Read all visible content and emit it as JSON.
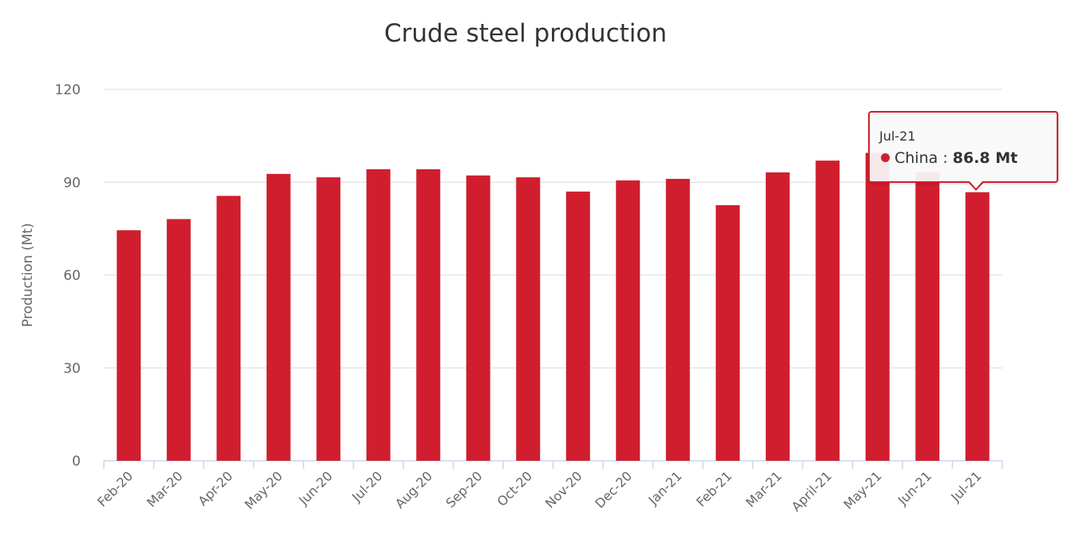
{
  "chart_data": {
    "type": "bar",
    "title": "Crude steel production",
    "xlabel": "",
    "ylabel": "Production (Mt)",
    "ylim": [
      0,
      120
    ],
    "yticks": [
      0,
      30,
      60,
      90,
      120
    ],
    "grid": true,
    "color": "#d01e2e",
    "categories": [
      "Feb-20",
      "Mar-20",
      "Apr-20",
      "May-20",
      "Jun-20",
      "Jul-20",
      "Aug-20",
      "Sep-20",
      "Oct-20",
      "Nov-20",
      "Dec-20",
      "Jan-21",
      "Feb-21",
      "Mar-21",
      "April-21",
      "May-21",
      "Jun-21",
      "Jul-21"
    ],
    "series": [
      {
        "name": "China",
        "values": [
          74.5,
          78.1,
          85.6,
          92.7,
          91.6,
          94.2,
          94.2,
          92.2,
          91.6,
          87.0,
          90.6,
          91.1,
          82.6,
          93.2,
          97.0,
          99.5,
          93.2,
          86.8
        ]
      }
    ],
    "tooltip": {
      "category": "Jul-21",
      "series": "China",
      "separator": " : ",
      "value": "86.8 Mt"
    }
  }
}
